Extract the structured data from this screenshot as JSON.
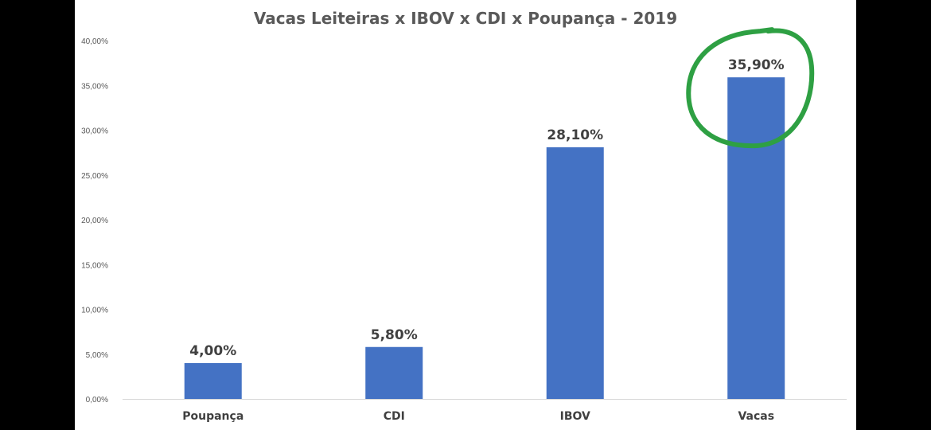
{
  "chart_data": {
    "type": "bar",
    "title": "Vacas Leiteiras x IBOV x CDI x Poupança - 2019",
    "categories": [
      "Poupança",
      "CDI",
      "IBOV",
      "Vacas"
    ],
    "values": [
      4.0,
      5.8,
      28.1,
      35.9
    ],
    "data_labels": [
      "4,00%",
      "5,80%",
      "28,10%",
      "35,90%"
    ],
    "ylim": [
      0,
      40
    ],
    "y_ticks": [
      0,
      5,
      10,
      15,
      20,
      25,
      30,
      35,
      40
    ],
    "y_tick_labels": [
      "0,00%",
      "5,00%",
      "10,00%",
      "15,00%",
      "20,00%",
      "25,00%",
      "30,00%",
      "35,00%",
      "40,00%"
    ],
    "xlabel": "",
    "ylabel": "",
    "grid": false,
    "legend": "none",
    "bar_color": "#4472c4",
    "highlight": {
      "category": "Vacas",
      "shape": "hand-drawn circle",
      "color": "#2ea043"
    }
  }
}
